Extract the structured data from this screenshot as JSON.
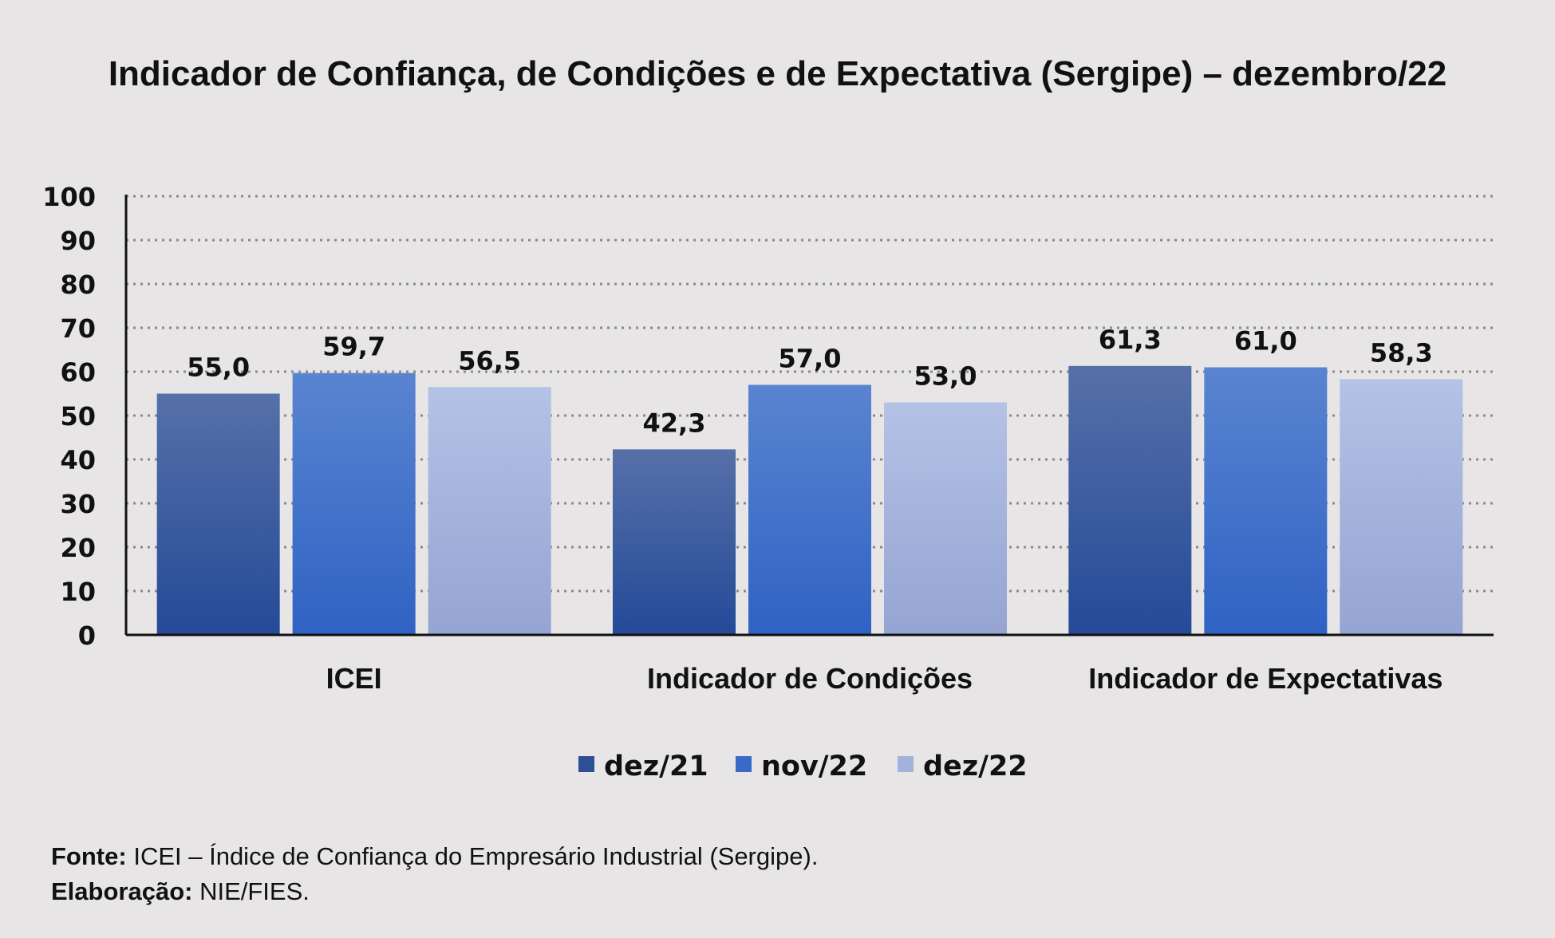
{
  "chart_data": {
    "type": "bar",
    "title": "Indicador de Confiança, de Condições e de Expectativa (Sergipe) – dezembro/22",
    "categories": [
      "ICEI",
      "Indicador de Condições",
      "Indicador de Expectativas"
    ],
    "series": [
      {
        "name": "dez/21",
        "values": [
          55.0,
          42.3,
          61.3
        ],
        "labels": [
          "55,0",
          "42,3",
          "61,3"
        ],
        "color": "#2c4f96"
      },
      {
        "name": "nov/22",
        "values": [
          59.7,
          57.0,
          61.0
        ],
        "labels": [
          "59,7",
          "57,0",
          "61,0"
        ],
        "color": "#3a6ac8"
      },
      {
        "name": "dez/22",
        "values": [
          56.5,
          53.0,
          58.3
        ],
        "labels": [
          "56,5",
          "53,0",
          "58,3"
        ],
        "color": "#a2b2dc"
      }
    ],
    "ylim": [
      0,
      100
    ],
    "yticks": [
      "0",
      "10",
      "20",
      "30",
      "40",
      "50",
      "60",
      "70",
      "80",
      "90",
      "100"
    ],
    "grid": true,
    "legend": "bottom-center",
    "xlabel": "",
    "ylabel": ""
  },
  "footer": {
    "source_label": "Fonte:",
    "source_text": "ICEI – Índice de Confiança do Empresário Industrial (Sergipe).",
    "credit_label": "Elaboração:",
    "credit_text": "NIE/FIES."
  }
}
